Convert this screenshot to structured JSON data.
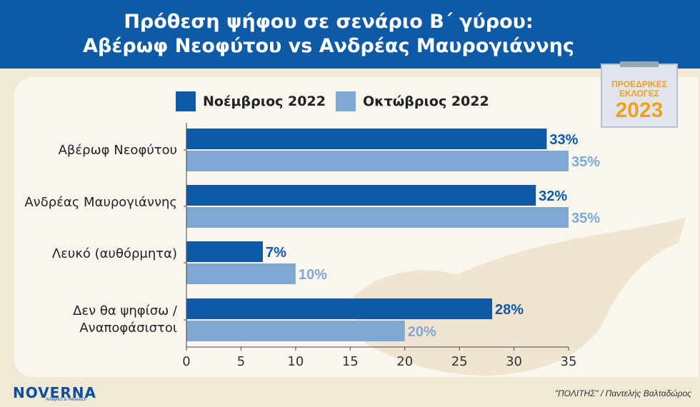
{
  "title_line1": "Πρόθεση ψήφου σε σενάριο Β΄ γύρου:",
  "title_line2": "Αβέρωφ Νεοφύτου vs Ανδρέας Μαυρογιάννης",
  "badge": {
    "line1": "ΠΡΟΕΔΡΙΚΕΣ",
    "line2": "ΕΚΛΟΓΕΣ",
    "year": "2023"
  },
  "logo": {
    "name": "NOVERNA",
    "tagline": "Analytics & Research"
  },
  "credit": "\"ΠΟΛΙΤΗΣ\" / Παντελής Βαλταδώρος",
  "colors": {
    "november": "#0e5aa7",
    "october": "#7fa9d3",
    "header": "#0e5aa7"
  },
  "chart_data": {
    "type": "bar",
    "orientation": "horizontal",
    "categories_lines": [
      [
        "Αβέρωφ Νεοφύτου"
      ],
      [
        "Ανδρέας Μαυρογιάννης"
      ],
      [
        "Λευκό (αυθόρμητα)"
      ],
      [
        "Δεν θα ψηφίσω /",
        "Αναποφάσιστοι"
      ]
    ],
    "series": [
      {
        "name": "Νοέμβριος 2022",
        "values": [
          33,
          32,
          7,
          28
        ],
        "labels": [
          "33%",
          "32%",
          "7%",
          "28%"
        ]
      },
      {
        "name": "Οκτώβριος 2022",
        "values": [
          35,
          35,
          10,
          20
        ],
        "labels": [
          "35%",
          "35%",
          "10%",
          "20%"
        ]
      }
    ],
    "xlim": [
      0,
      35
    ],
    "xticks": [
      "0",
      "5",
      "10",
      "15",
      "20",
      "25",
      "30",
      "35"
    ],
    "legend_position": "top",
    "grid": false
  }
}
